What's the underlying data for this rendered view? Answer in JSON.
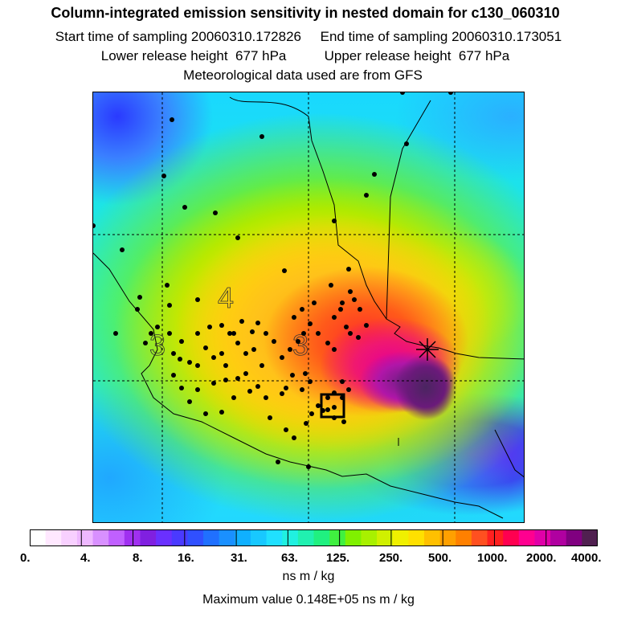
{
  "header": {
    "title": "Column-integrated emission sensitivity in nested domain for c130_060310",
    "sampling_line": "Start time of sampling 20060310.172826     End time of sampling 20060310.173051",
    "release_line": "Lower release height  677 hPa          Upper release height  677 hPa",
    "met_line": "Meteorological data used are from GFS"
  },
  "map": {
    "contour_labels": [
      "4",
      "3",
      "3"
    ],
    "gridlines": "dashed"
  },
  "chart_data": {
    "type": "heatmap",
    "title": "Column-integrated emission sensitivity in nested domain for c130_060310",
    "colorbar": {
      "tick_labels": [
        "0.",
        "4.",
        "8.",
        "16.",
        "31.",
        "63.",
        "125.",
        "250.",
        "500.",
        "1000.",
        "2000.",
        "4000."
      ],
      "tick_values": [
        0,
        4,
        8,
        16,
        31,
        63,
        125,
        250,
        500,
        1000,
        2000,
        4000
      ],
      "units": "ns m / kg",
      "colors": [
        "#ffffff",
        "#ffe8ff",
        "#f8d0ff",
        "#eeb8ff",
        "#d890ff",
        "#c060ff",
        "#a030f0",
        "#8020e0",
        "#6a30ff",
        "#4a3aff",
        "#3050ff",
        "#2070ff",
        "#1a90ff",
        "#10b0ff",
        "#18c8ff",
        "#20e0ff",
        "#20f0e0",
        "#20f0b0",
        "#20f080",
        "#40f040",
        "#80f000",
        "#a8f000",
        "#d0f000",
        "#f0f000",
        "#ffe000",
        "#ffc000",
        "#ffa000",
        "#ff8000",
        "#ff5020",
        "#ff2020",
        "#ff0050",
        "#ff0090",
        "#e000a8",
        "#b000a0",
        "#800080",
        "#502050"
      ]
    },
    "max_value_text": "Maximum value  0.148E+05 ns m / kg",
    "max_value": 14800
  }
}
